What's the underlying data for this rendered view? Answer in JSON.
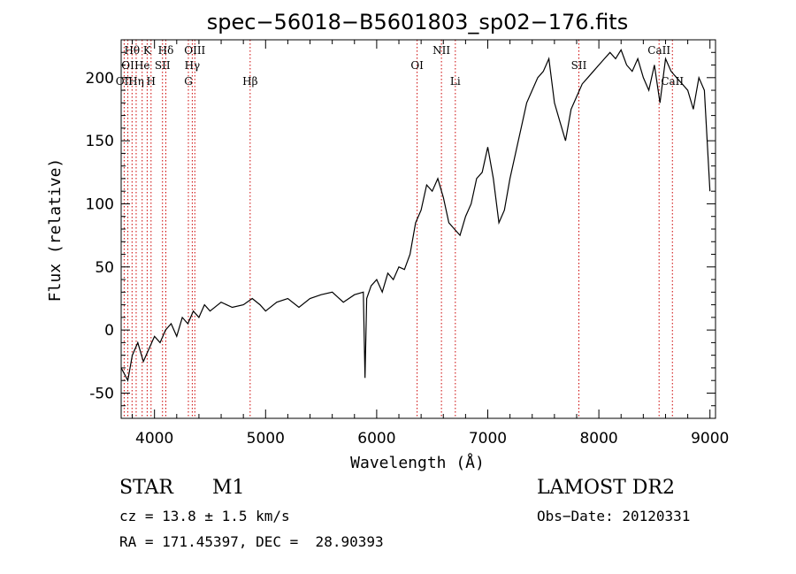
{
  "chart_data": {
    "type": "line",
    "title": "spec−56018−B5601803_sp02−176.fits",
    "xlabel": "Wavelength (Å)",
    "ylabel": "Flux (relative)",
    "xlim": [
      3700,
      9050
    ],
    "ylim": [
      -70,
      230
    ],
    "xticks": [
      4000,
      5000,
      6000,
      7000,
      8000,
      9000
    ],
    "yticks": [
      -50,
      0,
      50,
      100,
      150,
      200
    ],
    "series": [
      {
        "color": "#000000",
        "x": [
          3700,
          3760,
          3800,
          3850,
          3900,
          3950,
          4000,
          4050,
          4100,
          4150,
          4200,
          4250,
          4300,
          4350,
          4400,
          4450,
          4500,
          4600,
          4700,
          4800,
          4880,
          4950,
          5000,
          5100,
          5200,
          5300,
          5400,
          5500,
          5600,
          5700,
          5800,
          5880,
          5895,
          5910,
          5950,
          6000,
          6050,
          6100,
          6150,
          6200,
          6250,
          6300,
          6350,
          6400,
          6450,
          6500,
          6550,
          6600,
          6650,
          6700,
          6750,
          6800,
          6850,
          6900,
          6950,
          7000,
          7050,
          7100,
          7150,
          7200,
          7250,
          7300,
          7350,
          7400,
          7450,
          7500,
          7550,
          7600,
          7650,
          7700,
          7750,
          7800,
          7850,
          7900,
          7950,
          8000,
          8050,
          8100,
          8150,
          8200,
          8250,
          8300,
          8350,
          8400,
          8450,
          8500,
          8550,
          8600,
          8650,
          8700,
          8750,
          8800,
          8850,
          8900,
          8950,
          9000
        ],
        "y": [
          -30,
          -40,
          -20,
          -10,
          -25,
          -15,
          -5,
          -10,
          0,
          5,
          -5,
          10,
          5,
          15,
          10,
          20,
          15,
          22,
          18,
          20,
          25,
          20,
          15,
          22,
          25,
          18,
          25,
          28,
          30,
          22,
          28,
          30,
          -38,
          25,
          35,
          40,
          30,
          45,
          40,
          50,
          48,
          60,
          85,
          95,
          115,
          110,
          120,
          105,
          85,
          80,
          75,
          90,
          100,
          120,
          125,
          145,
          120,
          85,
          95,
          120,
          140,
          160,
          180,
          190,
          200,
          205,
          215,
          180,
          165,
          150,
          175,
          185,
          195,
          200,
          205,
          210,
          215,
          220,
          215,
          222,
          210,
          205,
          215,
          200,
          190,
          210,
          180,
          215,
          205,
          200,
          195,
          190,
          175,
          200,
          190,
          110
        ]
      }
    ],
    "lines": [
      {
        "label": "Hθ",
        "x": 3798,
        "row": 0
      },
      {
        "label": "OI",
        "x": 3760,
        "row": 1
      },
      {
        "label": "OII",
        "x": 3727,
        "row": 2
      },
      {
        "label": "Hη",
        "x": 3835,
        "row": 2
      },
      {
        "label": "He",
        "x": 3889,
        "row": 1
      },
      {
        "label": "K",
        "x": 3934,
        "row": 0
      },
      {
        "label": "H",
        "x": 3969,
        "row": 2
      },
      {
        "label": "SII",
        "x": 4072,
        "row": 1
      },
      {
        "label": "Hδ",
        "x": 4102,
        "row": 0
      },
      {
        "label": "OIII",
        "x": 4363,
        "row": 0
      },
      {
        "label": "Hγ",
        "x": 4340,
        "row": 1
      },
      {
        "label": "G",
        "x": 4305,
        "row": 2
      },
      {
        "label": "Hβ",
        "x": 4861,
        "row": 2
      },
      {
        "label": "OI",
        "x": 6364,
        "row": 1
      },
      {
        "label": "NII",
        "x": 6583,
        "row": 0
      },
      {
        "label": "Li",
        "x": 6708,
        "row": 2
      },
      {
        "label": "SII",
        "x": 7820,
        "row": 1
      },
      {
        "label": "CaII",
        "x": 8542,
        "row": 0
      },
      {
        "label": "CaII",
        "x": 8662,
        "row": 2
      }
    ]
  },
  "info": {
    "object_class": "STAR",
    "subclass": "M1",
    "survey": "LAMOST DR2",
    "cz": "cz = 13.8 ± 1.5 km/s",
    "obs_date": "Obs−Date: 20120331",
    "coords": "RA = 171.45397, DEC =  28.90393"
  }
}
